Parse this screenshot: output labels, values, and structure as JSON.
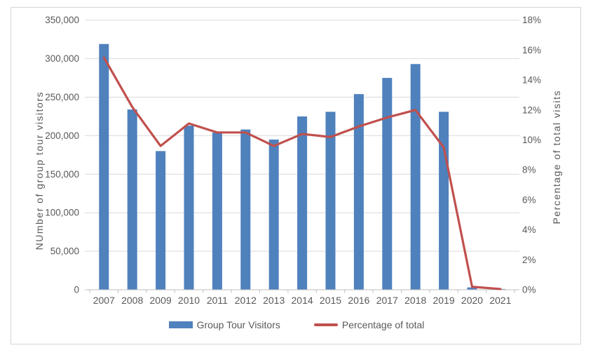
{
  "chart_data": {
    "type": "bar",
    "subtype": "combo-bar-line-dual-axis",
    "categories": [
      "2007",
      "2008",
      "2009",
      "2010",
      "2011",
      "2012",
      "2013",
      "2014",
      "2015",
      "2016",
      "2017",
      "2018",
      "2019",
      "2020",
      "2021"
    ],
    "series": [
      {
        "name": "Group Tour Visitors",
        "type": "bar",
        "axis": "left",
        "values": [
          319000,
          234000,
          180000,
          213000,
          204000,
          208000,
          195000,
          225000,
          231000,
          254000,
          275000,
          293000,
          231000,
          3000,
          1000
        ]
      },
      {
        "name": "Percentage of total",
        "type": "line",
        "axis": "right",
        "values": [
          15.5,
          12.2,
          9.6,
          11.1,
          10.5,
          10.5,
          9.6,
          10.4,
          10.2,
          10.9,
          11.5,
          12.0,
          9.5,
          0.2,
          0.05
        ]
      }
    ],
    "title": "",
    "xlabel": "",
    "left_axis": {
      "title": "NUmber of group tour visitors",
      "min": 0,
      "max": 350000,
      "step": 50000,
      "tick_labels": [
        "0",
        "50,000",
        "100,000",
        "150,000",
        "200,000",
        "250,000",
        "300,000",
        "350,000"
      ]
    },
    "right_axis": {
      "title": "Percentage of total visits",
      "min": 0,
      "max": 18,
      "step": 2,
      "unit": "%",
      "tick_labels": [
        "0%",
        "2%",
        "4%",
        "6%",
        "8%",
        "10%",
        "12%",
        "14%",
        "16%",
        "18%"
      ]
    },
    "grid": true,
    "legend_position": "bottom"
  },
  "colors": {
    "bar": "#4F81BD",
    "line": "#C0504D",
    "grid": "#D9D9D9",
    "axis_line": "#BFBFBF",
    "text": "#595959",
    "border": "#D6D6D6",
    "background": "#FFFFFF"
  }
}
